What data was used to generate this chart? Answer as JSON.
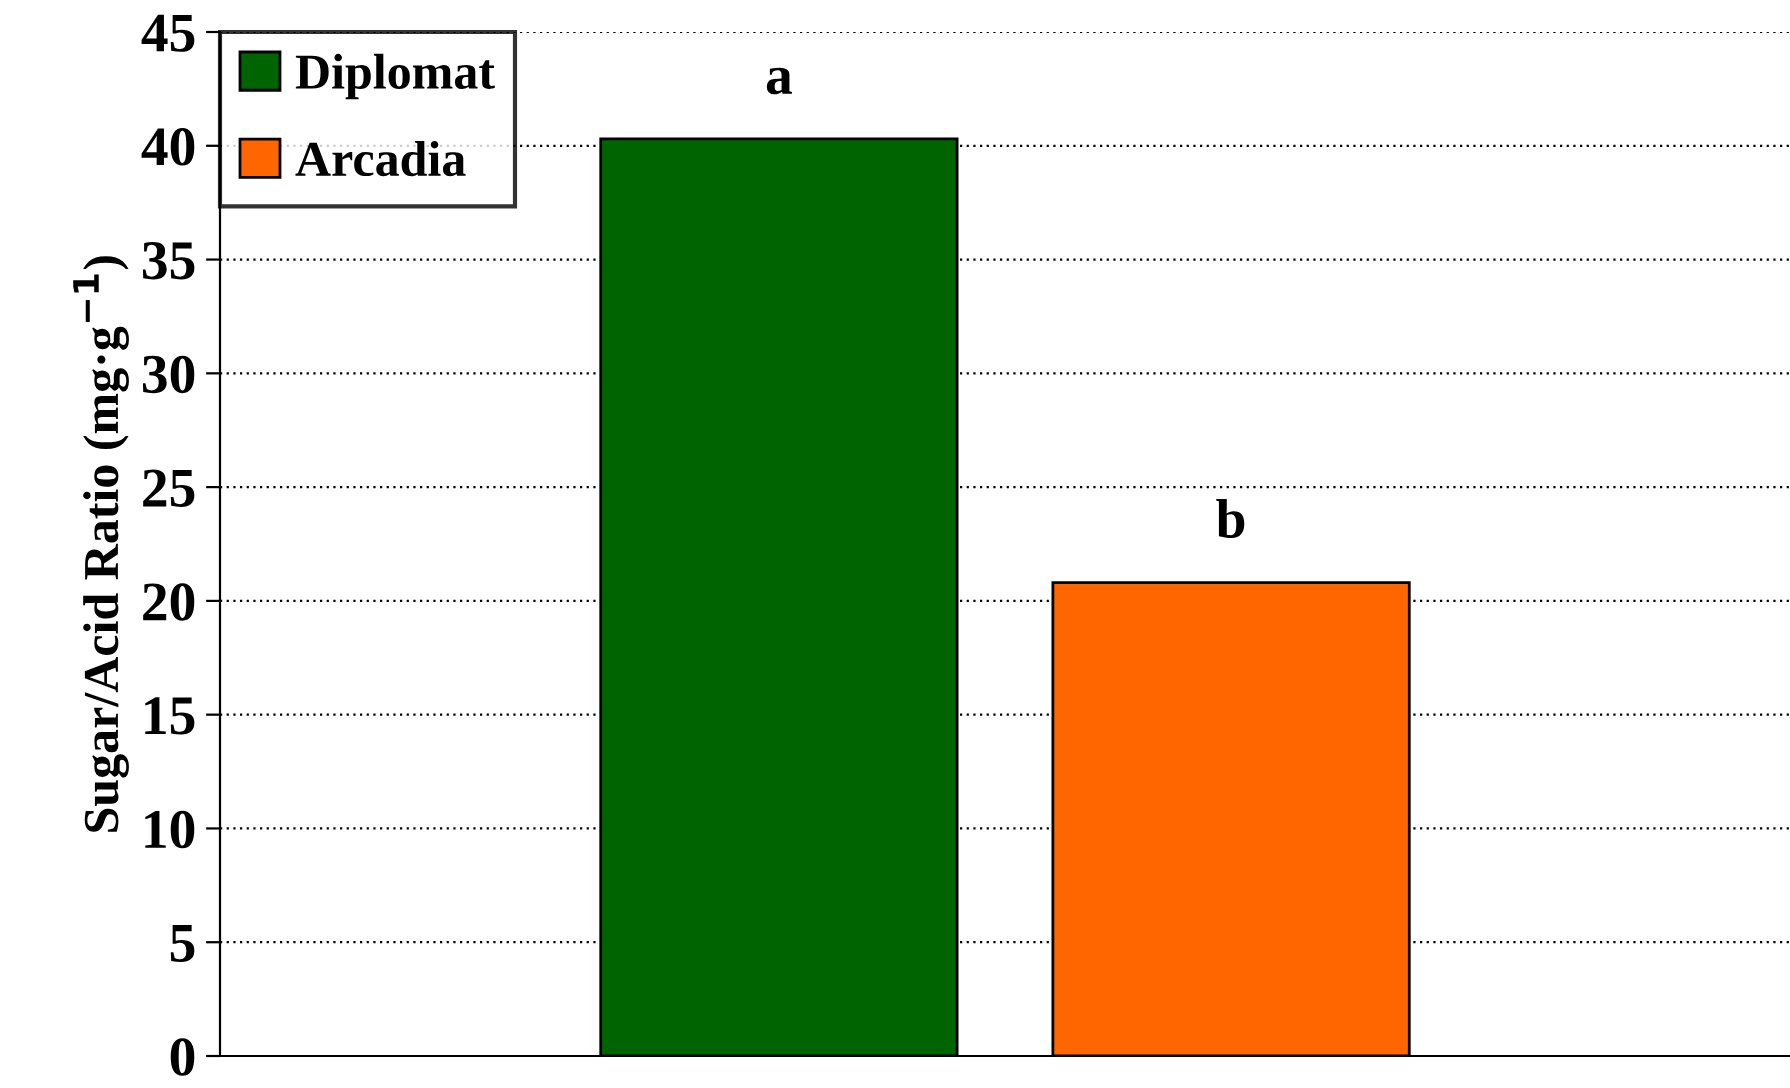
{
  "chart_data": {
    "type": "bar",
    "ylabel": "Sugar/Acid Ratio (mg·g$^{−1}$)",
    "categories": [
      null
    ],
    "series": [
      {
        "name": "Diplomat",
        "color": "#006400",
        "values": [
          40.3
        ]
      },
      {
        "name": "Arcadia",
        "color": "#ff6600",
        "values": [
          20.8
        ]
      }
    ],
    "annotations": [
      "a",
      "b"
    ],
    "ylim": [
      0,
      45
    ],
    "yticks": [
      0,
      5,
      10,
      15,
      20,
      25,
      30,
      35,
      40,
      45
    ],
    "grid": "y",
    "legend": "top left"
  }
}
